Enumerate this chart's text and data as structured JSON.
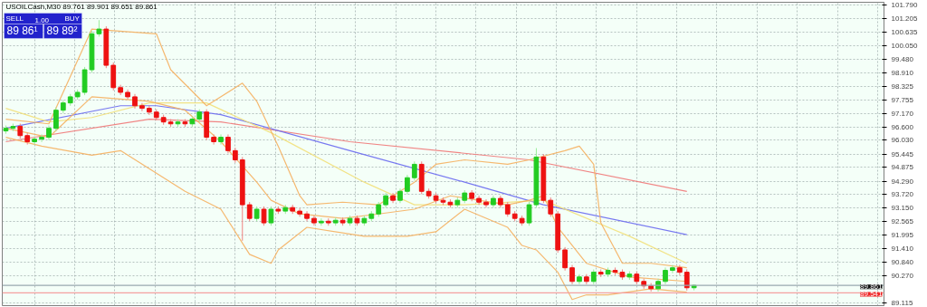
{
  "chart_data": {
    "type": "candlestick",
    "categories": [
      null,
      null,
      null,
      null,
      null,
      null,
      null,
      null,
      null,
      null,
      null,
      null,
      null,
      null,
      null,
      null,
      null,
      null,
      null,
      null,
      null,
      null,
      null,
      null,
      null,
      null,
      null,
      null,
      null,
      null,
      null,
      null,
      null,
      null,
      null,
      null,
      null,
      null,
      null,
      null,
      null,
      null,
      null,
      null,
      null,
      null,
      null,
      null,
      null,
      null,
      null,
      null,
      null,
      null,
      null,
      null,
      null,
      null,
      null,
      null,
      null,
      null,
      null,
      null,
      null,
      null,
      null,
      null,
      null,
      null,
      null,
      null,
      null,
      null,
      null,
      null,
      null,
      null,
      null,
      null,
      null,
      null,
      null,
      null,
      null,
      null,
      null,
      null,
      null,
      null,
      null,
      null,
      null,
      null,
      null,
      null,
      null,
      null,
      null,
      null,
      null,
      null,
      null,
      null,
      null,
      null,
      null,
      null,
      null,
      null,
      null,
      null,
      null,
      null,
      null,
      null,
      null,
      null,
      null,
      null,
      null,
      null,
      null
    ],
    "ohlc": [
      [
        96.43,
        96.66,
        96.31,
        96.54
      ],
      [
        96.54,
        96.74,
        96.42,
        96.62
      ],
      [
        96.62,
        96.74,
        96.11,
        96.23
      ],
      [
        96.23,
        96.35,
        95.85,
        95.97
      ],
      [
        95.97,
        96.2,
        95.85,
        96.08
      ],
      [
        96.08,
        96.28,
        95.96,
        96.16
      ],
      [
        96.16,
        96.66,
        96.04,
        96.54
      ],
      [
        96.54,
        97.43,
        96.42,
        97.31
      ],
      [
        97.31,
        97.74,
        97.19,
        97.62
      ],
      [
        97.62,
        98.0,
        97.5,
        97.88
      ],
      [
        97.88,
        98.19,
        97.76,
        98.07
      ],
      [
        98.07,
        99.15,
        97.95,
        99.03
      ],
      [
        99.03,
        100.68,
        98.91,
        100.56
      ],
      [
        100.56,
        101.14,
        100.44,
        100.76
      ],
      [
        100.76,
        100.88,
        99.1,
        99.22
      ],
      [
        99.22,
        99.34,
        98.15,
        98.27
      ],
      [
        98.27,
        98.39,
        97.95,
        98.07
      ],
      [
        98.07,
        98.19,
        97.76,
        97.88
      ],
      [
        97.88,
        98.0,
        97.38,
        97.5
      ],
      [
        97.5,
        97.62,
        97.27,
        97.39
      ],
      [
        97.39,
        97.51,
        97.11,
        97.23
      ],
      [
        97.23,
        97.35,
        96.88,
        97.0
      ],
      [
        97.0,
        97.12,
        96.69,
        96.81
      ],
      [
        96.81,
        96.93,
        96.61,
        96.73
      ],
      [
        96.73,
        96.93,
        96.61,
        96.81
      ],
      [
        96.81,
        96.93,
        96.61,
        96.73
      ],
      [
        96.73,
        97.05,
        96.61,
        96.93
      ],
      [
        96.93,
        97.35,
        96.81,
        97.23
      ],
      [
        97.23,
        97.35,
        96.04,
        96.16
      ],
      [
        96.16,
        96.28,
        95.85,
        95.97
      ],
      [
        95.97,
        96.28,
        95.85,
        96.16
      ],
      [
        96.16,
        96.28,
        95.47,
        95.59
      ],
      [
        95.59,
        95.71,
        95.08,
        95.2
      ],
      [
        95.2,
        95.32,
        91.76,
        93.29
      ],
      [
        93.29,
        93.41,
        92.59,
        92.71
      ],
      [
        92.71,
        93.22,
        92.59,
        93.1
      ],
      [
        93.1,
        93.22,
        92.4,
        92.52
      ],
      [
        92.52,
        93.22,
        92.4,
        93.1
      ],
      [
        93.1,
        93.22,
        92.9,
        93.02
      ],
      [
        93.02,
        93.29,
        92.9,
        93.17
      ],
      [
        93.17,
        93.29,
        92.9,
        93.02
      ],
      [
        93.02,
        93.14,
        92.78,
        92.9
      ],
      [
        92.9,
        93.02,
        92.59,
        92.71
      ],
      [
        92.71,
        92.83,
        92.4,
        92.52
      ],
      [
        92.52,
        92.71,
        92.4,
        92.59
      ],
      [
        92.59,
        92.71,
        92.4,
        92.52
      ],
      [
        92.52,
        92.75,
        92.4,
        92.63
      ],
      [
        92.63,
        92.75,
        92.4,
        92.52
      ],
      [
        92.52,
        92.83,
        92.4,
        92.71
      ],
      [
        92.71,
        92.83,
        92.4,
        92.52
      ],
      [
        92.52,
        92.83,
        92.4,
        92.71
      ],
      [
        92.71,
        93.02,
        92.59,
        92.9
      ],
      [
        92.9,
        93.41,
        92.78,
        93.29
      ],
      [
        93.29,
        93.79,
        93.17,
        93.67
      ],
      [
        93.67,
        93.79,
        93.36,
        93.48
      ],
      [
        93.48,
        93.98,
        93.36,
        93.86
      ],
      [
        93.86,
        94.56,
        93.74,
        94.44
      ],
      [
        94.44,
        95.13,
        94.32,
        95.01
      ],
      [
        95.01,
        95.13,
        93.74,
        93.86
      ],
      [
        93.86,
        93.98,
        93.55,
        93.67
      ],
      [
        93.67,
        93.79,
        93.36,
        93.48
      ],
      [
        93.48,
        93.6,
        93.28,
        93.4
      ],
      [
        93.4,
        93.52,
        93.17,
        93.29
      ],
      [
        93.29,
        93.6,
        93.17,
        93.48
      ],
      [
        93.48,
        93.91,
        93.36,
        93.79
      ],
      [
        93.79,
        93.91,
        93.44,
        93.56
      ],
      [
        93.56,
        93.68,
        93.28,
        93.4
      ],
      [
        93.4,
        93.52,
        93.17,
        93.29
      ],
      [
        93.29,
        93.68,
        93.17,
        93.56
      ],
      [
        93.56,
        93.68,
        93.17,
        93.29
      ],
      [
        93.29,
        93.41,
        92.78,
        92.9
      ],
      [
        92.9,
        93.02,
        92.59,
        92.71
      ],
      [
        92.71,
        92.83,
        92.4,
        92.52
      ],
      [
        92.52,
        93.41,
        92.4,
        93.29
      ],
      [
        93.29,
        95.7,
        93.17,
        95.32
      ],
      [
        95.32,
        95.44,
        93.36,
        93.48
      ],
      [
        93.48,
        93.6,
        92.78,
        92.9
      ],
      [
        92.9,
        93.02,
        91.25,
        91.37
      ],
      [
        91.37,
        91.49,
        90.49,
        90.61
      ],
      [
        90.61,
        90.73,
        89.91,
        90.03
      ],
      [
        90.03,
        90.34,
        89.91,
        90.22
      ],
      [
        90.22,
        90.34,
        89.91,
        90.03
      ],
      [
        90.03,
        90.54,
        89.91,
        90.42
      ],
      [
        90.42,
        90.54,
        90.22,
        90.34
      ],
      [
        90.34,
        90.62,
        90.22,
        90.5
      ],
      [
        90.5,
        90.62,
        90.3,
        90.42
      ],
      [
        90.42,
        90.54,
        90.1,
        90.22
      ],
      [
        90.22,
        90.46,
        90.1,
        90.34
      ],
      [
        90.34,
        90.46,
        89.91,
        90.03
      ],
      [
        90.03,
        90.15,
        89.72,
        89.84
      ],
      [
        89.84,
        89.96,
        89.6,
        89.72
      ],
      [
        89.72,
        90.15,
        89.6,
        90.03
      ],
      [
        90.03,
        90.62,
        89.91,
        90.5
      ],
      [
        90.5,
        90.73,
        90.38,
        90.61
      ],
      [
        90.61,
        90.73,
        90.3,
        90.42
      ],
      [
        90.42,
        90.54,
        89.64,
        89.76
      ],
      [
        89.761,
        89.901,
        89.651,
        89.861
      ],
      null,
      null,
      null,
      null,
      null,
      null,
      null,
      null,
      null,
      null,
      null,
      null,
      null,
      null,
      null,
      null,
      null,
      null,
      null,
      null,
      null,
      null,
      null,
      null,
      null,
      null
    ],
    "series": [
      {
        "type": "line",
        "color": "#f07878",
        "values": [
          95.97,
          null,
          null,
          null,
          null,
          null,
          null,
          null,
          null,
          null,
          null,
          null,
          null,
          null,
          null,
          null,
          null,
          null,
          null,
          null,
          96.93,
          null,
          null,
          null,
          null,
          null,
          null,
          null,
          null,
          null,
          96.81,
          null,
          null,
          null,
          null,
          null,
          null,
          null,
          null,
          null,
          null,
          null,
          null,
          null,
          null,
          null,
          null,
          null,
          95.97,
          null,
          null,
          null,
          null,
          null,
          null,
          null,
          null,
          null,
          null,
          null,
          null,
          null,
          null,
          null,
          null,
          null,
          null,
          null,
          null,
          null,
          null,
          null,
          null,
          95.2,
          null,
          null,
          null,
          null,
          null,
          null,
          null,
          null,
          null,
          null,
          null,
          null,
          null,
          null,
          null,
          null,
          null,
          null,
          null,
          null,
          null,
          93.86,
          null,
          null,
          null,
          null,
          null,
          null,
          null,
          null,
          null,
          null,
          null,
          null,
          null,
          null,
          null,
          null,
          null,
          null,
          null,
          null,
          null,
          null,
          null,
          null,
          null,
          null,
          null
        ]
      },
      {
        "type": "line",
        "color": "#6a6af0",
        "values": [
          96.54,
          null,
          null,
          null,
          null,
          null,
          null,
          null,
          null,
          null,
          null,
          null,
          null,
          null,
          null,
          null,
          97.5,
          null,
          null,
          null,
          null,
          97.5,
          null,
          null,
          null,
          null,
          null,
          null,
          null,
          null,
          97.12,
          null,
          null,
          null,
          null,
          null,
          null,
          null,
          null,
          null,
          null,
          null,
          null,
          null,
          null,
          null,
          null,
          null,
          95.59,
          null,
          null,
          null,
          null,
          null,
          null,
          null,
          null,
          null,
          null,
          null,
          null,
          null,
          null,
          null,
          94.25,
          null,
          null,
          null,
          null,
          null,
          null,
          null,
          null,
          null,
          null,
          93.29,
          null,
          null,
          null,
          null,
          null,
          null,
          null,
          null,
          null,
          null,
          null,
          null,
          null,
          null,
          null,
          null,
          null,
          null,
          null,
          92.02,
          null,
          null,
          null,
          null,
          null,
          null,
          null,
          null,
          null,
          null,
          null,
          null,
          null,
          null,
          null,
          null,
          null,
          null,
          null,
          null,
          null,
          null,
          null,
          null,
          null,
          null,
          null
        ]
      },
      {
        "type": "line",
        "color": "#f2e07a",
        "values": [
          97.39,
          null,
          null,
          null,
          null,
          null,
          96.81,
          null,
          null,
          null,
          null,
          null,
          97.0,
          null,
          null,
          null,
          null,
          null,
          null,
          null,
          97.62,
          null,
          null,
          null,
          null,
          null,
          null,
          null,
          97.62,
          null,
          null,
          null,
          null,
          null,
          null,
          null,
          null,
          96.35,
          null,
          null,
          null,
          null,
          null,
          null,
          null,
          null,
          null,
          null,
          null,
          null,
          94.25,
          null,
          null,
          null,
          null,
          null,
          null,
          93.29,
          null,
          null,
          null,
          null,
          null,
          null,
          93.29,
          null,
          null,
          null,
          null,
          null,
          null,
          null,
          null,
          null,
          null,
          93.48,
          null,
          null,
          null,
          null,
          null,
          null,
          null,
          null,
          null,
          null,
          null,
          91.95,
          null,
          null,
          null,
          null,
          null,
          null,
          null,
          90.8,
          null,
          null,
          null,
          null,
          null,
          null,
          null,
          null,
          null,
          null,
          null,
          null,
          null,
          null,
          null,
          null,
          null,
          null,
          null,
          null,
          null,
          null,
          null,
          null,
          null,
          null,
          null
        ]
      },
      {
        "type": "line",
        "color": "#f5b060",
        "values": [
          96.93,
          null,
          null,
          null,
          null,
          null,
          96.73,
          null,
          null,
          null,
          null,
          null,
          100.76,
          null,
          null,
          null,
          null,
          null,
          null,
          null,
          null,
          100.56,
          null,
          99.03,
          null,
          null,
          null,
          null,
          97.5,
          null,
          null,
          null,
          null,
          98.46,
          null,
          97.69,
          null,
          null,
          95.78,
          null,
          null,
          93.67,
          93.29,
          null,
          null,
          null,
          null,
          93.4,
          null,
          null,
          null,
          null,
          93.29,
          null,
          null,
          null,
          null,
          94.25,
          null,
          null,
          95.01,
          null,
          null,
          null,
          95.2,
          null,
          null,
          null,
          null,
          null,
          95.01,
          null,
          null,
          95.2,
          null,
          null,
          null,
          null,
          95.59,
          null,
          95.78,
          null,
          95.01,
          92.52,
          null,
          null,
          90.8,
          null,
          null,
          null,
          90.8,
          null,
          null,
          null,
          null,
          90.61,
          null,
          null,
          null,
          null,
          null,
          null,
          null,
          null,
          null,
          null,
          null,
          null,
          null,
          null,
          null,
          null,
          null,
          null,
          null,
          null,
          null,
          null,
          null,
          null,
          null,
          null,
          null
        ]
      },
      {
        "type": "line",
        "color": "#f5b060",
        "values": [
          96.54,
          null,
          null,
          null,
          null,
          null,
          96.16,
          null,
          null,
          null,
          null,
          null,
          97.88,
          null,
          null,
          null,
          null,
          null,
          null,
          null,
          97.69,
          null,
          null,
          null,
          null,
          97.31,
          null,
          null,
          null,
          null,
          95.97,
          null,
          null,
          null,
          null,
          94.25,
          null,
          93.48,
          null,
          null,
          null,
          92.9,
          null,
          null,
          null,
          null,
          null,
          92.71,
          null,
          null,
          null,
          null,
          92.9,
          null,
          null,
          null,
          null,
          93.1,
          null,
          null,
          null,
          null,
          93.67,
          null,
          null,
          null,
          null,
          null,
          null,
          null,
          93.29,
          null,
          null,
          93.48,
          null,
          93.67,
          null,
          92.33,
          null,
          null,
          null,
          90.8,
          null,
          null,
          null,
          null,
          null,
          90.22,
          null,
          null,
          null,
          null,
          null,
          null,
          null,
          90.03,
          null,
          null,
          null,
          null,
          null,
          null,
          null,
          null,
          null,
          null,
          null,
          null,
          null,
          null,
          null,
          null,
          null,
          null,
          null,
          null,
          null,
          null,
          null,
          null,
          null,
          null,
          null
        ]
      },
      {
        "type": "line",
        "color": "#f5b060",
        "values": [
          96.16,
          null,
          null,
          null,
          null,
          95.78,
          null,
          null,
          null,
          null,
          null,
          null,
          95.4,
          null,
          null,
          null,
          95.59,
          null,
          null,
          null,
          null,
          94.63,
          null,
          null,
          null,
          93.86,
          null,
          null,
          null,
          null,
          93.1,
          null,
          null,
          null,
          91.18,
          null,
          null,
          90.8,
          91.37,
          null,
          null,
          null,
          92.33,
          null,
          null,
          null,
          null,
          null,
          null,
          null,
          91.95,
          null,
          null,
          null,
          null,
          null,
          91.95,
          null,
          null,
          null,
          92.14,
          null,
          null,
          null,
          93.1,
          null,
          null,
          null,
          null,
          null,
          92.33,
          null,
          91.56,
          null,
          91.37,
          null,
          null,
          90.42,
          null,
          89.26,
          null,
          89.46,
          null,
          null,
          89.46,
          null,
          null,
          null,
          null,
          null,
          89.72,
          null,
          null,
          null,
          null,
          89.57,
          null,
          null,
          null,
          null,
          null,
          null,
          null,
          null,
          null,
          null,
          null,
          null,
          null,
          null,
          null,
          null,
          null,
          null,
          null,
          null,
          null,
          null,
          null,
          null,
          null,
          null,
          null
        ]
      }
    ],
    "ylim": [
      89.0,
      101.9
    ],
    "yticks": [
      {
        "value": 101.79,
        "label": "101.790"
      },
      {
        "value": 101.205,
        "label": "101.205"
      },
      {
        "value": 100.635,
        "label": "100.635"
      },
      {
        "value": 100.05,
        "label": "100.050"
      },
      {
        "value": 99.48,
        "label": "99.480"
      },
      {
        "value": 98.91,
        "label": "98.910"
      },
      {
        "value": 98.325,
        "label": "98.325"
      },
      {
        "value": 97.755,
        "label": "97.755"
      },
      {
        "value": 97.17,
        "label": "97.170"
      },
      {
        "value": 96.6,
        "label": "96.600"
      },
      {
        "value": 96.03,
        "label": "96.030"
      },
      {
        "value": 95.445,
        "label": "95.445"
      },
      {
        "value": 94.875,
        "label": "94.875"
      },
      {
        "value": 94.29,
        "label": "94.290"
      },
      {
        "value": 93.72,
        "label": "93.720"
      },
      {
        "value": 93.15,
        "label": "93.150"
      },
      {
        "value": 92.565,
        "label": "92.565"
      },
      {
        "value": 91.995,
        "label": "91.995"
      },
      {
        "value": 91.41,
        "label": "91.410"
      },
      {
        "value": 90.84,
        "label": "90.840"
      },
      {
        "value": 90.27,
        "label": "90.270"
      },
      {
        "value": 89.115,
        "label": "89.115"
      }
    ],
    "ref_lines": [
      {
        "axis": "y",
        "value": 89.861,
        "label": "89.861",
        "color": "#9aa8b0"
      },
      {
        "axis": "y",
        "value": 89.541,
        "label": "89.541",
        "color": "#f4a0a0"
      }
    ],
    "annotations": [
      "USOILCash,M30  89.761 89.901 89.651 89.861",
      "SELL",
      "1.00",
      "BUY",
      "89 86¹",
      "89 89²"
    ],
    "grid": true,
    "tick_labels": "y"
  }
}
